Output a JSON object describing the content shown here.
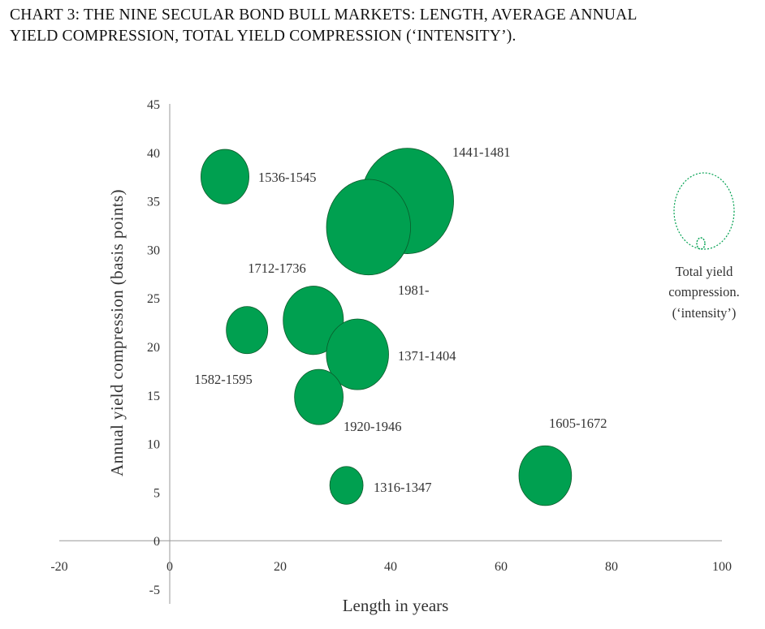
{
  "title": {
    "line1": "CHART 3: THE NINE SECULAR BOND BULL MARKETS: LENGTH, AVERAGE ANNUAL",
    "line2": "YIELD COMPRESSION, TOTAL YIELD COMPRESSION (‘INTENSITY’)."
  },
  "colors": {
    "bubble": "#00a050",
    "bubble_stroke": "#0a5a2a",
    "legend": "#00a050",
    "axis": "#999999"
  },
  "chart_data": {
    "type": "bubble",
    "xlabel": "Length in years",
    "ylabel": "Annual yield compression (basis points)",
    "xlim": [
      -20,
      100
    ],
    "ylim": [
      -5,
      45
    ],
    "x_ticks": [
      -20,
      0,
      20,
      40,
      60,
      80,
      100
    ],
    "y_ticks": [
      -5,
      0,
      5,
      10,
      15,
      20,
      25,
      30,
      35,
      40,
      45
    ],
    "bubble_size_meaning": "Total yield compression (intensity)",
    "points": [
      {
        "label": "1536-1545",
        "x": 10,
        "y": 37.5,
        "size": 375
      },
      {
        "label": "1441-1481",
        "x": 43,
        "y": 35,
        "size": 1400
      },
      {
        "label": "1981-",
        "x": 36,
        "y": 32.3,
        "size": 1150
      },
      {
        "label": "1712-1736",
        "x": 26,
        "y": 22.7,
        "size": 590
      },
      {
        "label": "1582-1595",
        "x": 14,
        "y": 21.7,
        "size": 280
      },
      {
        "label": "1371-1404",
        "x": 34,
        "y": 19.2,
        "size": 630
      },
      {
        "label": "1920-1946",
        "x": 27,
        "y": 14.8,
        "size": 385
      },
      {
        "label": "1316-1347",
        "x": 32,
        "y": 5.7,
        "size": 180
      },
      {
        "label": "1605-1672",
        "x": 68,
        "y": 6.7,
        "size": 450
      }
    ],
    "legend": {
      "line1": "Total yield",
      "line2": "compression.",
      "line3": "(‘intensity’)"
    }
  }
}
